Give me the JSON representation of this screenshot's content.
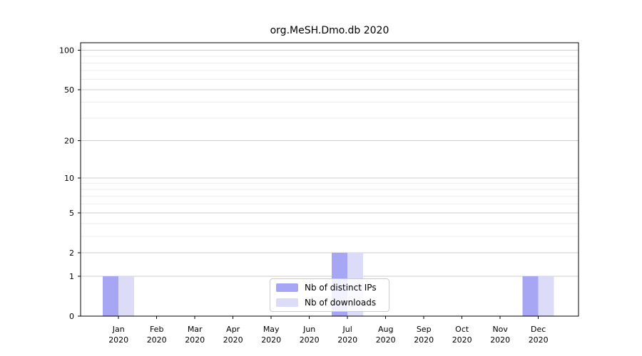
{
  "title": "org.MeSH.Dmo.db 2020",
  "colors": {
    "distinct_ips": "#a6a6f4",
    "downloads": "#dcdcf8",
    "grid_major": "#cccccc",
    "grid_minor": "#ededed",
    "axis": "#000000",
    "legend_border": "#cccccc",
    "background": "#ffffff"
  },
  "legend": {
    "items": [
      {
        "label": "Nb of distinct IPs",
        "color_key": "distinct_ips"
      },
      {
        "label": "Nb of downloads",
        "color_key": "downloads"
      }
    ]
  },
  "chart_data": {
    "type": "bar",
    "title": "org.MeSH.Dmo.db 2020",
    "categories": [
      "Jan 2020",
      "Feb 2020",
      "Mar 2020",
      "Apr 2020",
      "May 2020",
      "Jun 2020",
      "Jul 2020",
      "Aug 2020",
      "Sep 2020",
      "Oct 2020",
      "Nov 2020",
      "Dec 2020"
    ],
    "series": [
      {
        "name": "Nb of distinct IPs",
        "values": [
          1,
          0,
          0,
          0,
          0,
          0,
          2,
          0,
          0,
          0,
          0,
          1
        ]
      },
      {
        "name": "Nb of downloads",
        "values": [
          1,
          0,
          0,
          0,
          0,
          0,
          2,
          0,
          0,
          0,
          0,
          1
        ]
      }
    ],
    "y_scale": "log1p",
    "y_ticks": [
      0,
      1,
      2,
      5,
      10,
      20,
      50,
      100
    ],
    "y_minor_ticks": [
      3,
      4,
      6,
      7,
      8,
      9,
      30,
      40,
      60,
      70,
      80,
      90
    ],
    "ylim": [
      0,
      114
    ],
    "xlabel": "",
    "ylabel": "",
    "grid": true,
    "legend_position": "lower center"
  }
}
